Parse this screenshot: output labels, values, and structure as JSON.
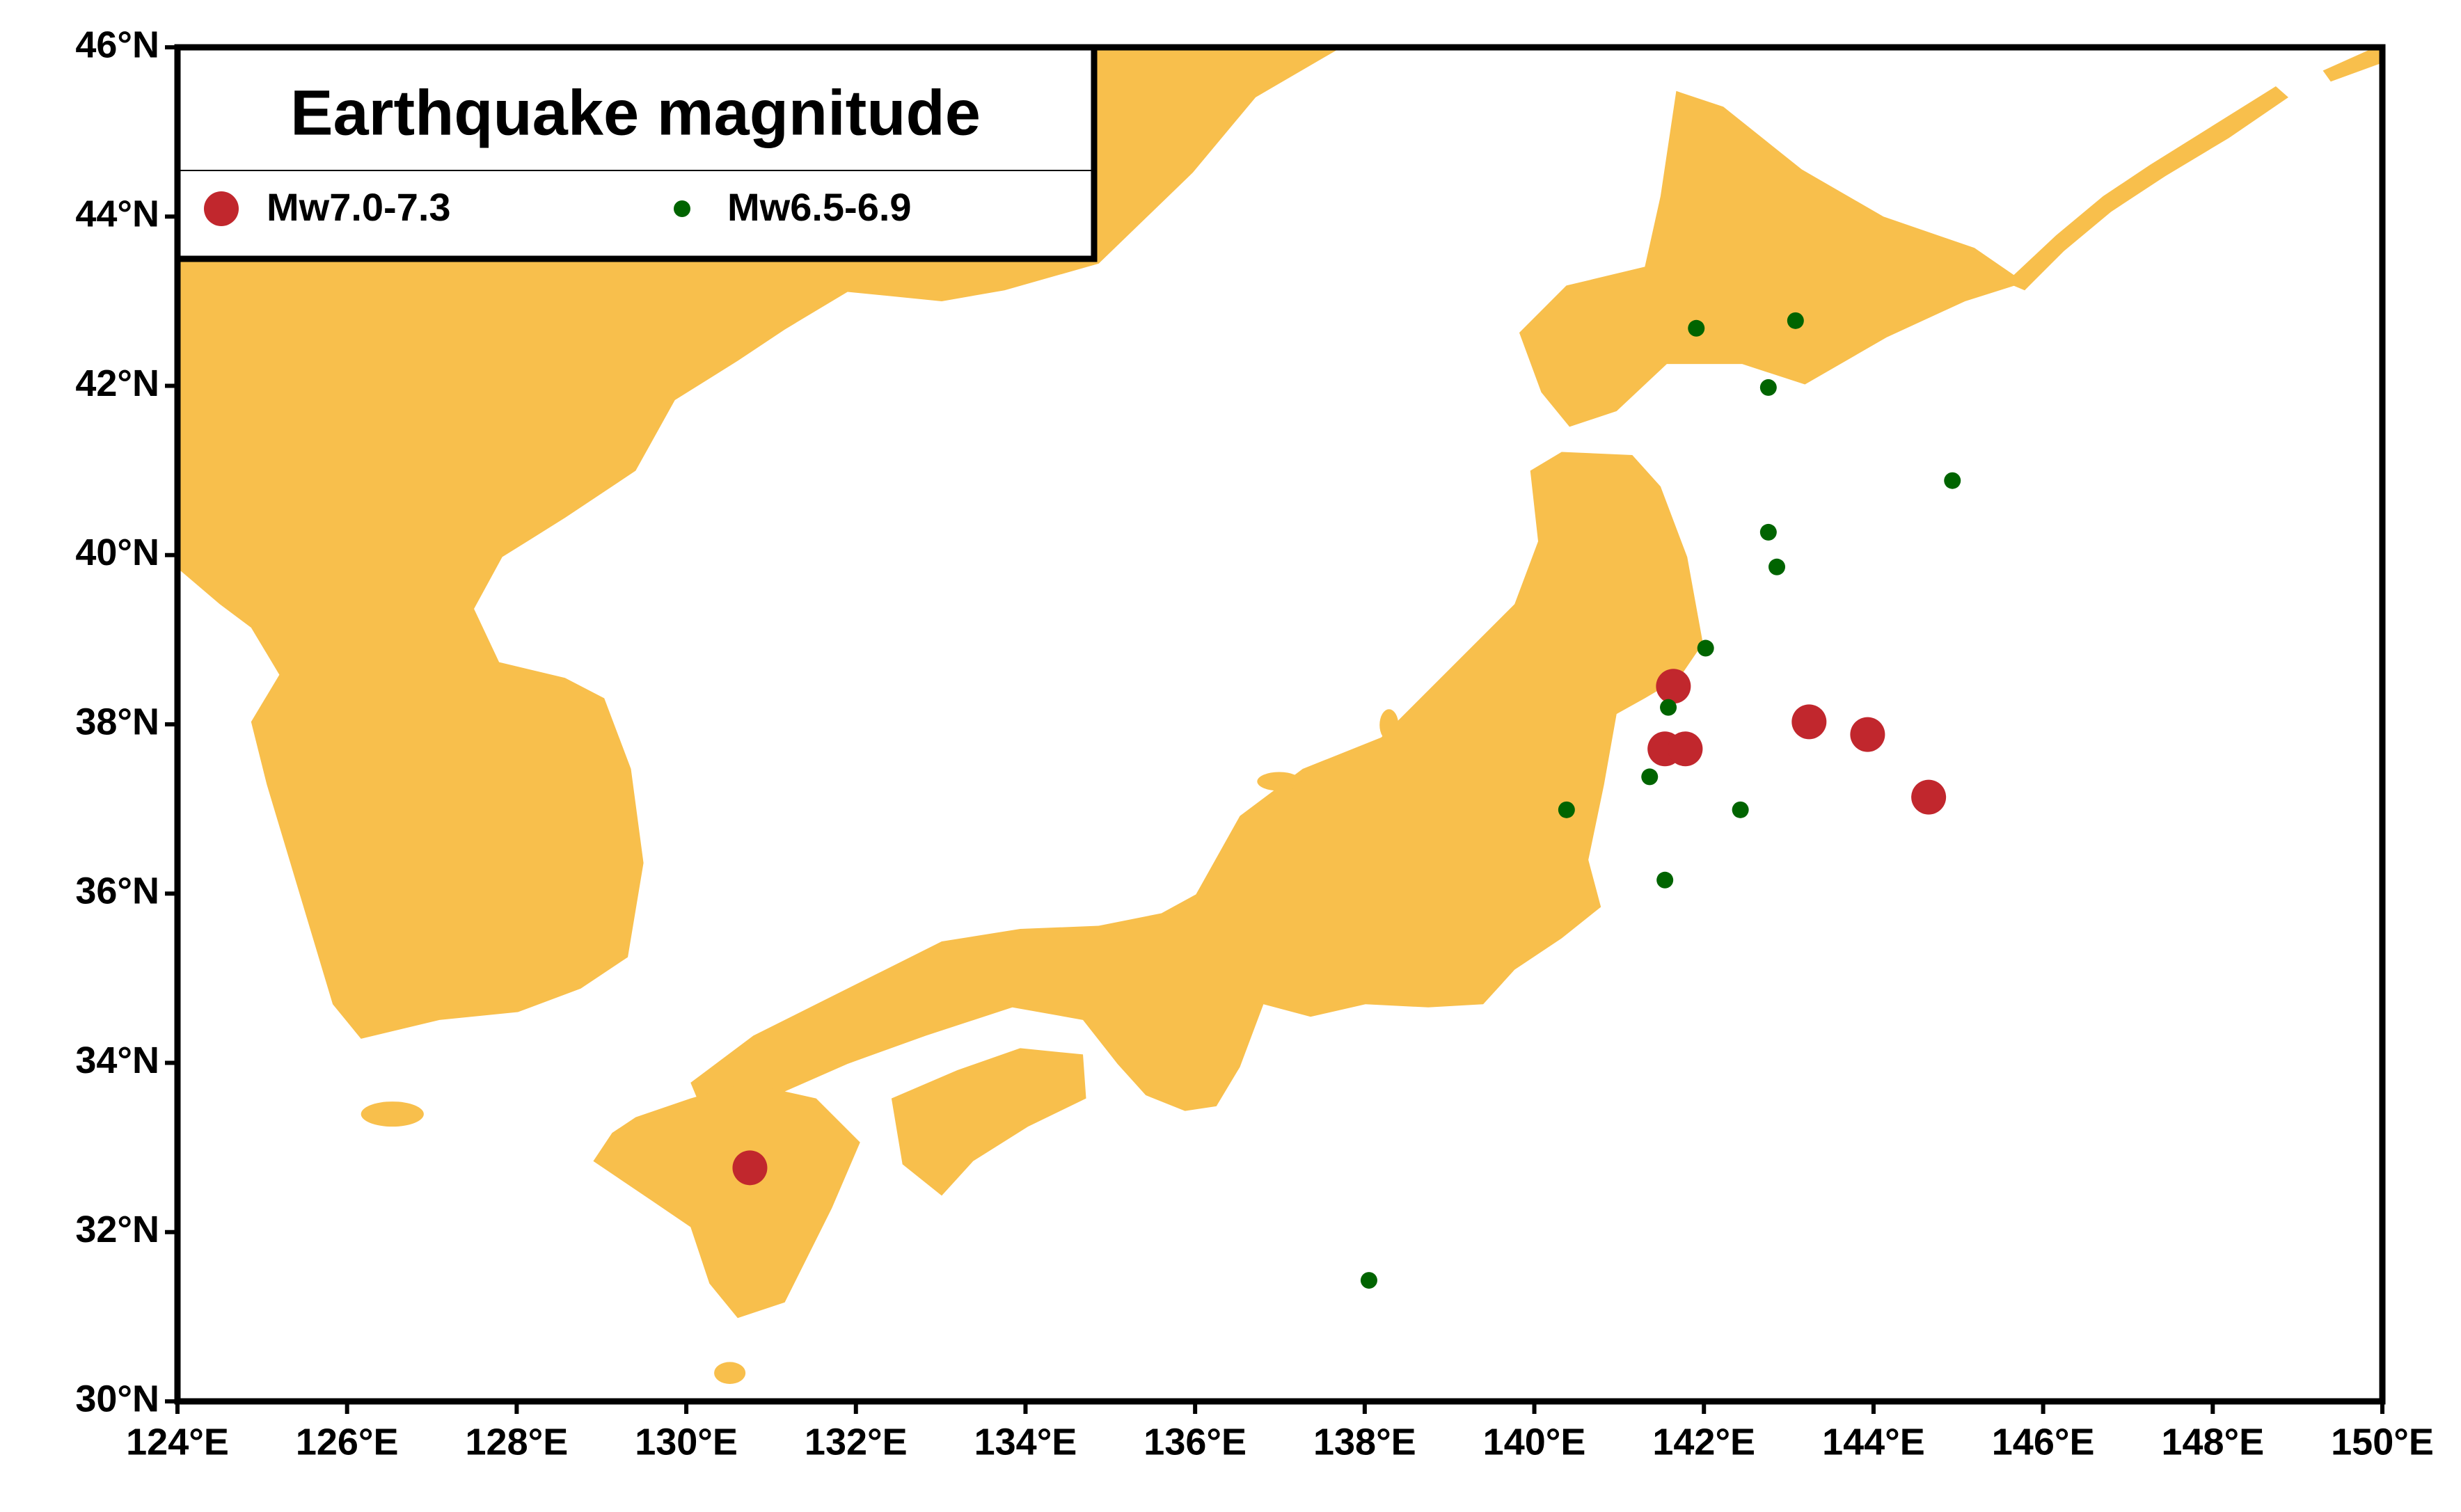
{
  "chart_data": {
    "type": "scatter",
    "legend_title": "Earthquake magnitude",
    "xlim": [
      124,
      150
    ],
    "ylim": [
      30,
      46
    ],
    "xticks": [
      {
        "value": 124,
        "label": "124°E"
      },
      {
        "value": 126,
        "label": "126°E"
      },
      {
        "value": 128,
        "label": "128°E"
      },
      {
        "value": 130,
        "label": "130°E"
      },
      {
        "value": 132,
        "label": "132°E"
      },
      {
        "value": 134,
        "label": "134°E"
      },
      {
        "value": 136,
        "label": "136°E"
      },
      {
        "value": 138,
        "label": "138°E"
      },
      {
        "value": 140,
        "label": "140°E"
      },
      {
        "value": 142,
        "label": "142°E"
      },
      {
        "value": 144,
        "label": "144°E"
      },
      {
        "value": 146,
        "label": "146°E"
      },
      {
        "value": 148,
        "label": "148°E"
      },
      {
        "value": 150,
        "label": "150°E"
      }
    ],
    "yticks": [
      {
        "value": 30,
        "label": "30°N"
      },
      {
        "value": 32,
        "label": "32°N"
      },
      {
        "value": 34,
        "label": "34°N"
      },
      {
        "value": 36,
        "label": "36°N"
      },
      {
        "value": 38,
        "label": "38°N"
      },
      {
        "value": 40,
        "label": "40°N"
      },
      {
        "value": 42,
        "label": "42°N"
      },
      {
        "value": 44,
        "label": "44°N"
      },
      {
        "value": 46,
        "label": "46°N"
      }
    ],
    "series": [
      {
        "name": "Mw7.0-7.3",
        "color": "#c1272d",
        "x": [
          130.75,
          141.64,
          141.54,
          141.78,
          143.24,
          143.93,
          144.65
        ],
        "values": [
          32.76,
          38.45,
          37.71,
          37.71,
          38.03,
          37.88,
          37.14
        ]
      },
      {
        "name": "Mw6.5-6.9",
        "color": "#006400",
        "x": [
          141.91,
          143.08,
          142.76,
          144.93,
          142.76,
          142.86,
          142.02,
          141.58,
          141.36,
          140.38,
          142.43,
          141.54,
          138.05
        ],
        "values": [
          42.68,
          42.77,
          41.98,
          40.88,
          40.27,
          39.86,
          38.9,
          38.2,
          37.38,
          36.99,
          36.99,
          36.16,
          31.43
        ]
      }
    ]
  }
}
